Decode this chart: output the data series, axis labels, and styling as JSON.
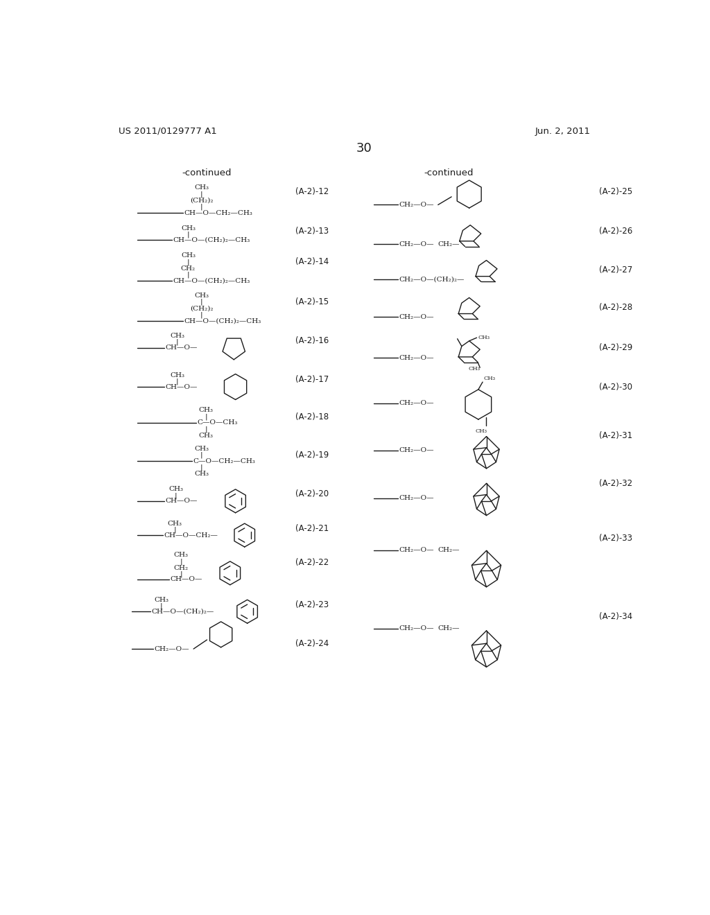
{
  "patent_number": "US 2011/0129777 A1",
  "patent_date": "Jun. 2, 2011",
  "page_number": "30",
  "background_color": "#ffffff",
  "text_color": "#1a1a1a",
  "font_size_small": 7.5,
  "font_size_label": 8.5,
  "font_size_patent": 9.5,
  "font_size_page": 13,
  "font_size_cont": 9.5
}
